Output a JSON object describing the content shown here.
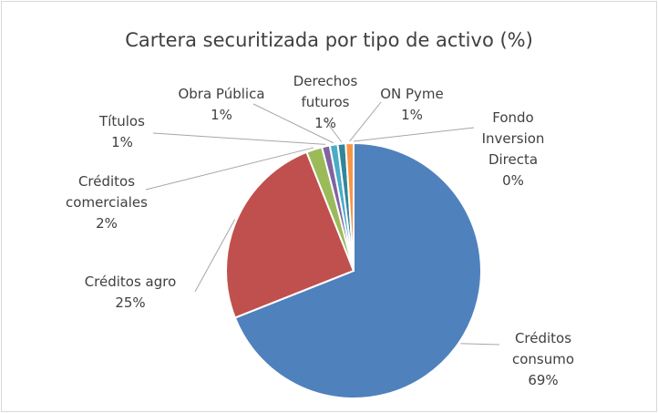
{
  "chart_data": {
    "type": "pie",
    "title": "Cartera securitizada por tipo de activo (%)",
    "categories": [
      "Créditos consumo",
      "Créditos agro",
      "Créditos comerciales",
      "Títulos",
      "Obra Pública",
      "Derechos futuros",
      "ON Pyme",
      "Fondo Inversion Directa"
    ],
    "values": [
      69,
      25,
      2,
      1,
      1,
      1,
      1,
      0
    ],
    "value_labels": [
      "69%",
      "25%",
      "2%",
      "1%",
      "1%",
      "1%",
      "1%",
      "0%"
    ],
    "colors": [
      "#4f81bd",
      "#c0504d",
      "#9bbb59",
      "#8064a2",
      "#4bacc6",
      "#31859c",
      "#f79646",
      "#772c2a"
    ]
  }
}
